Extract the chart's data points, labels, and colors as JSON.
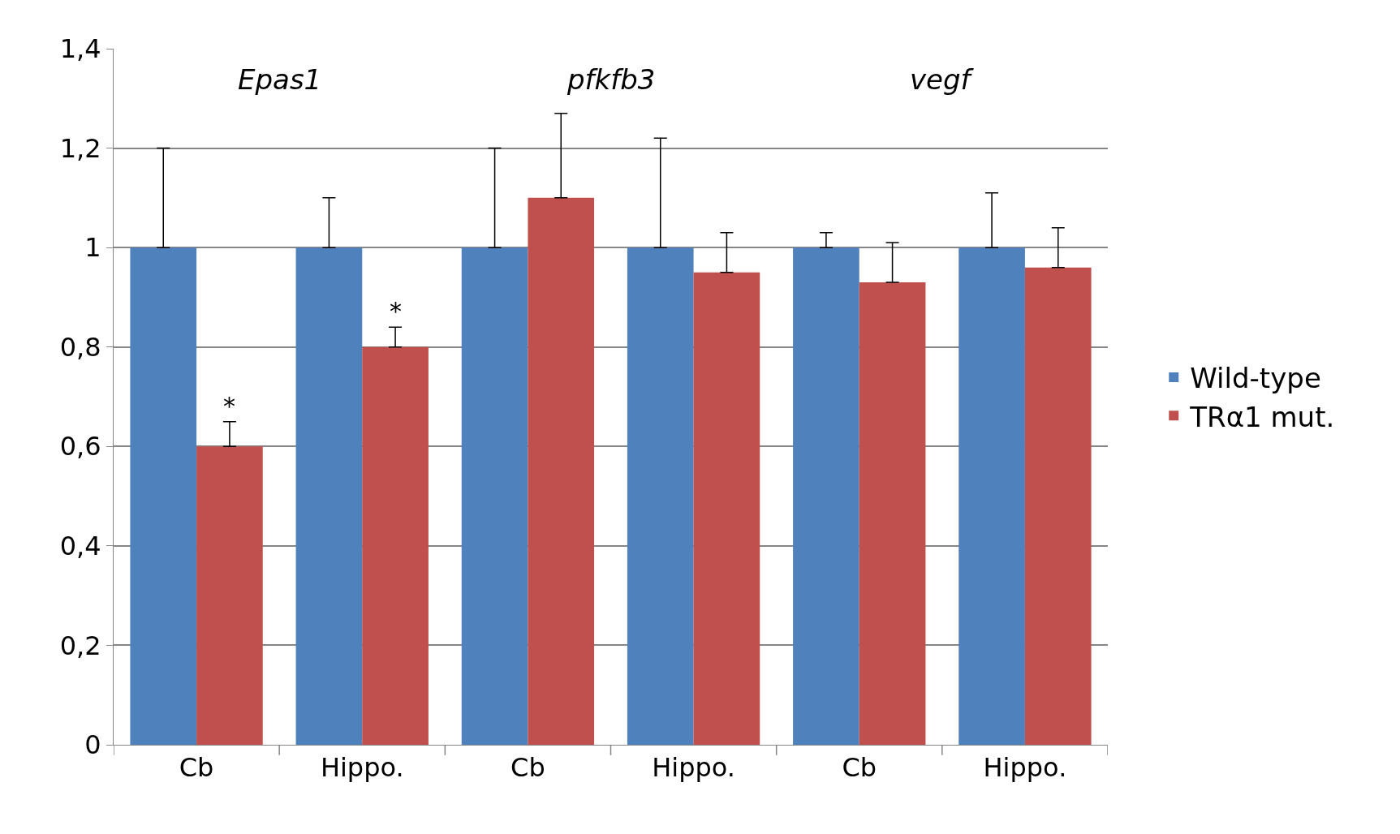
{
  "chart_data": {
    "type": "bar",
    "categories": [
      "Cb",
      "Hippo.",
      "Cb",
      "Hippo.",
      "Cb",
      "Hippo."
    ],
    "series": [
      {
        "name": "Wild-type",
        "color": "#4f81bd",
        "values": [
          1,
          1,
          1,
          1,
          1,
          1
        ],
        "errors": [
          [
            1,
            1.2
          ],
          [
            1,
            1.1
          ],
          [
            1,
            1.2
          ],
          [
            1,
            1.22
          ],
          [
            1,
            1.03
          ],
          [
            1,
            1.11
          ]
        ]
      },
      {
        "name": "TRα1 mut.",
        "color": "#c0504d",
        "values": [
          0.6,
          0.8,
          1.1,
          0.95,
          0.93,
          0.96
        ],
        "errors": [
          [
            0.6,
            0.65
          ],
          [
            0.8,
            0.84
          ],
          [
            1.1,
            1.27
          ],
          [
            0.95,
            1.03
          ],
          [
            0.93,
            1.01
          ],
          [
            0.96,
            1.04
          ]
        ]
      }
    ],
    "ylim": [
      0,
      1.4
    ],
    "yticks": [
      0,
      {
        "value": 0.2,
        "label": "0,2"
      },
      {
        "value": 0.4,
        "label": "0,4"
      },
      {
        "value": 0.6,
        "label": "0,6"
      },
      {
        "value": 0.8,
        "label": "0,8"
      },
      1,
      {
        "value": 1.2,
        "label": "1,2"
      },
      {
        "value": 1.4,
        "label": "1,4"
      }
    ],
    "grid": "y",
    "legend": "right",
    "annotations": [
      "Epas1",
      "pfkfb3",
      "vegf",
      {
        "text": "*",
        "y": 0.65
      },
      {
        "text": "*",
        "y": 0.84
      }
    ]
  }
}
